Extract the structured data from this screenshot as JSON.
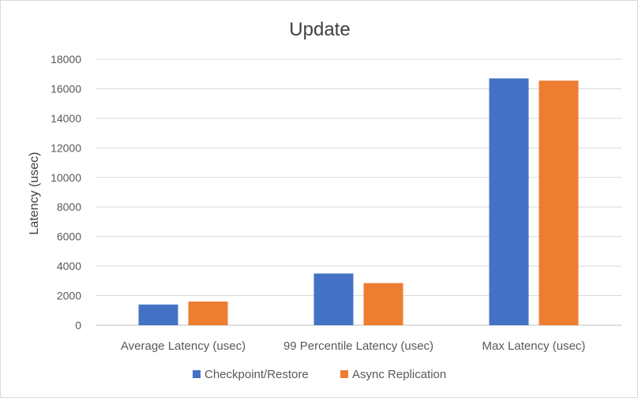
{
  "chart_data": {
    "type": "bar",
    "title": "Update",
    "xlabel": "",
    "ylabel": "Latency (usec)",
    "categories": [
      "Average Latency (usec)",
      "99 Percentile Latency (usec)",
      "Max Latency (usec)"
    ],
    "series": [
      {
        "name": "Checkpoint/Restore",
        "color": "#4472c4",
        "values": [
          1400,
          3500,
          16700
        ]
      },
      {
        "name": "Async Replication",
        "color": "#ed7d31",
        "values": [
          1600,
          2850,
          16550
        ]
      }
    ],
    "ylim": [
      0,
      18000
    ],
    "yticks": [
      "0",
      "2000",
      "4000",
      "6000",
      "8000",
      "10000",
      "12000",
      "14000",
      "16000",
      "18000"
    ],
    "grid": true,
    "legend": "bottom"
  }
}
